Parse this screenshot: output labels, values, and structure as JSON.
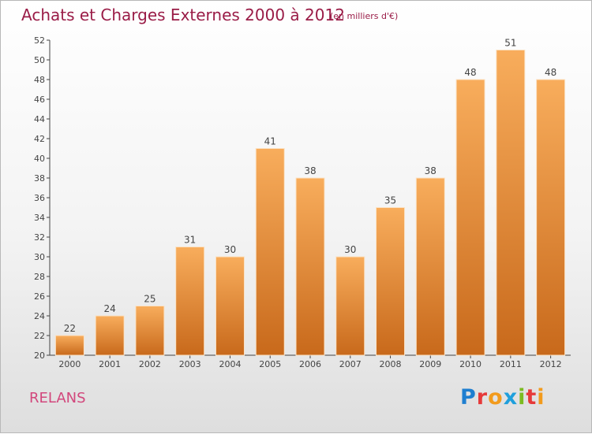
{
  "header": {
    "title": "Achats et Charges Externes 2000 à 2012",
    "subtitle": "(en milliers d'€)"
  },
  "footer": {
    "place": "RELANS",
    "logo": [
      "P",
      "r",
      "o",
      "x",
      "i",
      "t",
      "i"
    ],
    "logo_colors": [
      "#1f7fd0",
      "#e63a3a",
      "#f29b1d",
      "#1f9fdc",
      "#7cbb21",
      "#e63a3a",
      "#f29b1d"
    ]
  },
  "chart_data": {
    "type": "bar",
    "title": "Achats et Charges Externes 2000 à 2012",
    "subtitle": "(en milliers d'€)",
    "categories": [
      "2000",
      "2001",
      "2002",
      "2003",
      "2004",
      "2005",
      "2006",
      "2007",
      "2008",
      "2009",
      "2010",
      "2011",
      "2012"
    ],
    "values": [
      22,
      24,
      25,
      31,
      30,
      41,
      38,
      30,
      35,
      38,
      48,
      51,
      48
    ],
    "ylim": [
      20,
      52
    ],
    "yticks": [
      20,
      22,
      24,
      26,
      28,
      30,
      32,
      34,
      36,
      38,
      40,
      42,
      44,
      46,
      48,
      50,
      52
    ],
    "grid": false,
    "legend": "none",
    "bar_color": "#f0923c",
    "bar_color_light": "#f8ad5c",
    "bar_color_dark": "#c8691b"
  }
}
